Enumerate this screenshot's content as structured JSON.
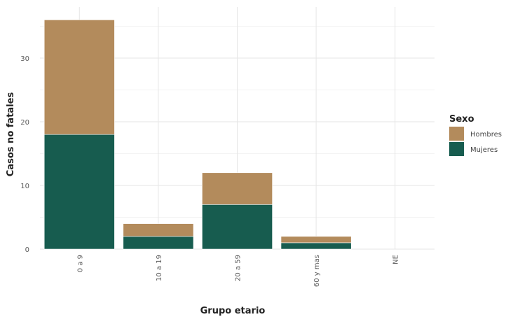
{
  "chart_data": {
    "type": "bar",
    "stacked": true,
    "title": "",
    "xlabel": "Grupo etario",
    "ylabel": "Casos no fatales",
    "categories": [
      "0 a 9",
      "10 a 19",
      "20 a 59",
      "60 y mas",
      "NE"
    ],
    "series": [
      {
        "name": "Mujeres",
        "values": [
          18,
          2,
          7,
          1,
          0
        ],
        "color": "#175c4f"
      },
      {
        "name": "Hombres",
        "values": [
          18,
          2,
          5,
          1,
          0
        ],
        "color": "#b38b5c"
      }
    ],
    "ylim": [
      0,
      36
    ],
    "yticks": [
      0,
      10,
      20,
      30
    ],
    "grid": true,
    "legend": {
      "title": "Sexo",
      "placement": "right",
      "order": [
        "Hombres",
        "Mujeres"
      ]
    }
  }
}
